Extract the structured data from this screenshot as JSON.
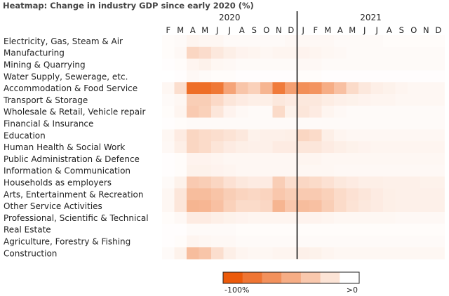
{
  "title": "Heatmap: Change in industry GDP since early 2020 (%)",
  "chart_data": {
    "type": "heatmap",
    "title": "Heatmap: Change in industry GDP since early 2020 (%)",
    "years": [
      {
        "label": "2020",
        "months": 11
      },
      {
        "label": "2021",
        "months": 12
      }
    ],
    "columns": [
      "F",
      "M",
      "A",
      "M",
      "J",
      "J",
      "A",
      "S",
      "O",
      "N",
      "D",
      "J",
      "F",
      "M",
      "A",
      "M",
      "J",
      "J",
      "A",
      "S",
      "O",
      "N",
      "D"
    ],
    "divider_after_index": 10,
    "rows": [
      "Electricity, Gas, Steam & Air",
      "Manufacturing",
      "Mining & Quarrying",
      "Water Supply, Sewerage, etc.",
      "Accommodation & Food Service",
      "Transport & Storage",
      "Wholesale & Retail, Vehicle repair",
      "Financial & Insurance",
      "Education",
      "Human Health & Social Work",
      "Public Administration & Defence",
      "Information & Communication",
      "Households as employers",
      "Arts, Entertainment & Recreation",
      "Other Service Activities",
      "Professional, Scientific & Technical",
      "Real Estate",
      "Agriculture, Forestry & Fishing",
      "Construction"
    ],
    "values": [
      [
        -2,
        -3,
        -6,
        -5,
        -5,
        -3,
        -3,
        -3,
        -3,
        -3,
        -4,
        -4,
        -4,
        -4,
        -3,
        -3,
        -3,
        -3,
        -2,
        -2,
        -2,
        -2,
        -2
      ],
      [
        -2,
        -4,
        -25,
        -21,
        -14,
        -10,
        -7,
        -6,
        -5,
        -6,
        -6,
        -7,
        -6,
        -5,
        -4,
        -3,
        -3,
        -3,
        -3,
        -3,
        -3,
        -3,
        -3
      ],
      [
        -1,
        -2,
        -6,
        -8,
        -5,
        -4,
        -3,
        -3,
        -3,
        -3,
        -3,
        -4,
        -4,
        -3,
        -3,
        -3,
        -3,
        -3,
        -3,
        -3,
        -3,
        -3,
        -3
      ],
      [
        0,
        -1,
        -4,
        -3,
        -2,
        -2,
        -1,
        -1,
        -1,
        -1,
        -1,
        -2,
        -2,
        -1,
        -1,
        -1,
        -1,
        -1,
        -1,
        -1,
        -1,
        -1,
        -1
      ],
      [
        -5,
        -20,
        -88,
        -88,
        -82,
        -55,
        -35,
        -28,
        -45,
        -80,
        -58,
        -68,
        -65,
        -50,
        -38,
        -22,
        -14,
        -10,
        -8,
        -6,
        -5,
        -5,
        -5
      ],
      [
        -3,
        -5,
        -30,
        -30,
        -23,
        -15,
        -12,
        -10,
        -10,
        -14,
        -12,
        -14,
        -14,
        -11,
        -9,
        -8,
        -7,
        -6,
        -6,
        -5,
        -5,
        -5,
        -5
      ],
      [
        -2,
        -6,
        -32,
        -28,
        -15,
        -7,
        -4,
        -3,
        -3,
        -22,
        -8,
        -15,
        -12,
        -6,
        -4,
        -3,
        -3,
        -3,
        -3,
        -3,
        -3,
        -3,
        -3
      ],
      [
        -1,
        -2,
        -3,
        -3,
        -3,
        -3,
        -3,
        -3,
        -3,
        -3,
        -3,
        -3,
        -3,
        -3,
        -3,
        -3,
        -3,
        -3,
        -3,
        -3,
        -3,
        -3,
        -3
      ],
      [
        -5,
        -12,
        -25,
        -22,
        -20,
        -17,
        -14,
        -8,
        -9,
        -9,
        -10,
        -25,
        -22,
        -10,
        -6,
        -5,
        -5,
        -5,
        -5,
        -5,
        -5,
        -5,
        -5
      ],
      [
        -4,
        -10,
        -25,
        -22,
        -16,
        -12,
        -10,
        -9,
        -9,
        -12,
        -12,
        -15,
        -15,
        -12,
        -10,
        -8,
        -7,
        -6,
        -6,
        -6,
        -6,
        -6,
        -6
      ],
      [
        -1,
        -2,
        -7,
        -7,
        -6,
        -5,
        -5,
        -5,
        -5,
        -5,
        -5,
        -6,
        -6,
        -5,
        -5,
        -5,
        -5,
        -5,
        -5,
        -5,
        -5,
        -5,
        -5
      ],
      [
        -1,
        -2,
        -8,
        -8,
        -7,
        -6,
        -5,
        -5,
        -5,
        -5,
        -5,
        -5,
        -5,
        -5,
        -4,
        -4,
        -4,
        -4,
        -4,
        -4,
        -4,
        -4,
        -4
      ],
      [
        -3,
        -8,
        -32,
        -30,
        -25,
        -18,
        -14,
        -12,
        -12,
        -30,
        -20,
        -24,
        -22,
        -18,
        -14,
        -12,
        -10,
        -10,
        -9,
        -9,
        -9,
        -8,
        -8
      ],
      [
        -5,
        -15,
        -40,
        -40,
        -36,
        -30,
        -26,
        -24,
        -26,
        -34,
        -30,
        -32,
        -32,
        -28,
        -22,
        -18,
        -15,
        -12,
        -10,
        -9,
        -9,
        -9,
        -9
      ],
      [
        -5,
        -15,
        -45,
        -44,
        -38,
        -28,
        -22,
        -22,
        -24,
        -45,
        -34,
        -40,
        -38,
        -30,
        -22,
        -17,
        -14,
        -12,
        -10,
        -9,
        -9,
        -9,
        -9
      ],
      [
        -2,
        -4,
        -12,
        -12,
        -10,
        -8,
        -7,
        -6,
        -6,
        -6,
        -6,
        -7,
        -7,
        -6,
        -5,
        -5,
        -5,
        -5,
        -5,
        -4,
        -4,
        -4,
        -4
      ],
      [
        -1,
        -1,
        -3,
        -3,
        -3,
        -3,
        -2,
        -2,
        -2,
        -2,
        -2,
        -2,
        -2,
        -2,
        -2,
        -2,
        -2,
        -2,
        -2,
        -2,
        -2,
        -2,
        -2
      ],
      [
        -1,
        -2,
        -6,
        -5,
        -4,
        -4,
        -3,
        -3,
        -3,
        -3,
        -3,
        -3,
        -3,
        -3,
        -3,
        -3,
        -3,
        -3,
        -3,
        -3,
        -3,
        -3,
        -3
      ],
      [
        -3,
        -8,
        -40,
        -35,
        -20,
        -10,
        -6,
        -5,
        -5,
        -6,
        -6,
        -9,
        -8,
        -6,
        -5,
        -5,
        -5,
        -5,
        -5,
        -5,
        -5,
        -5,
        -5
      ]
    ],
    "scale": {
      "min": -100,
      "max": 0,
      "min_label": "-100%",
      "max_label": ">0",
      "color_min": "#ec5a0a",
      "color_max": "#ffffff",
      "steps": 7
    },
    "divider_color": "#111111"
  }
}
